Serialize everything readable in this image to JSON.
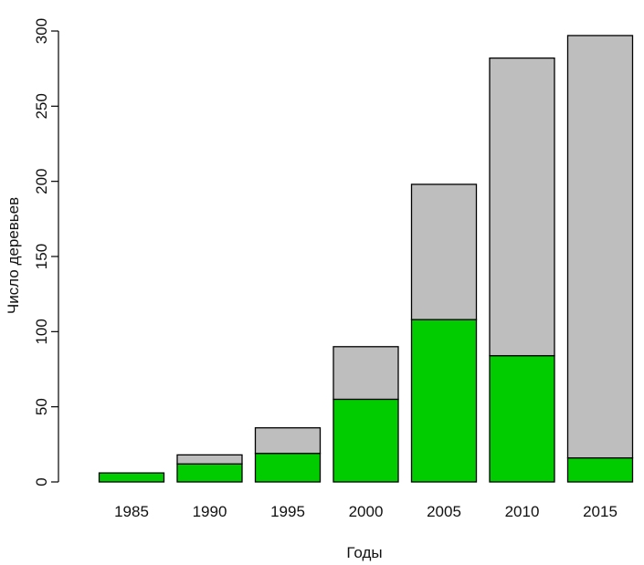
{
  "chart_data": {
    "type": "bar",
    "stacked": true,
    "title": "",
    "xlabel": "Годы",
    "ylabel": "Число деревьев",
    "categories": [
      "1985",
      "1990",
      "1995",
      "2000",
      "2005",
      "2010",
      "2015"
    ],
    "series": [
      {
        "color": "#00cc00",
        "values": [
          6,
          12,
          19,
          55,
          108,
          84,
          16
        ]
      },
      {
        "color": "#bebebe",
        "values": [
          0,
          6,
          17,
          35,
          90,
          198,
          281
        ]
      }
    ],
    "ylim": [
      0,
      300
    ],
    "yticks": [
      0,
      50,
      100,
      150,
      200,
      250,
      300
    ],
    "grid": false,
    "legend": "none"
  }
}
